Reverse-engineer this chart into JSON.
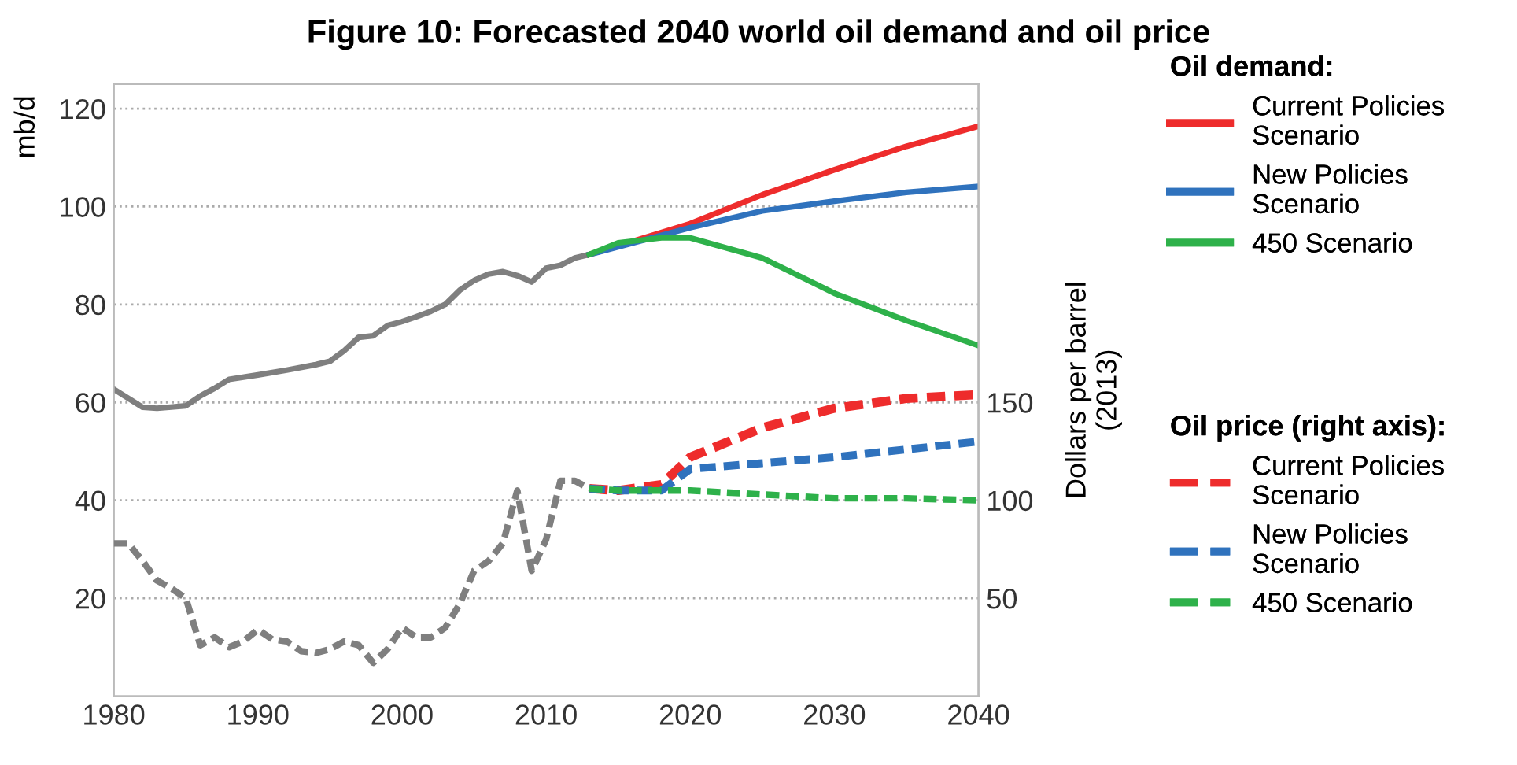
{
  "chart_data": {
    "type": "line",
    "title": "Figure 10: Forecasted 2040 world oil demand and oil price",
    "ylabel": "mb/d",
    "y2label": "Dollars per barrel\n(2013)",
    "annotations": [
      "Oil demand:",
      "Oil price (right axis):"
    ],
    "xlim": [
      1980,
      2040
    ],
    "xticks": [
      1980,
      1990,
      2000,
      2010,
      2020,
      2030,
      2040
    ],
    "ylim": [
      0,
      125
    ],
    "yticks": [
      20,
      40,
      60,
      80,
      100,
      120
    ],
    "y2lim": [
      0,
      312.5
    ],
    "y2ticks": [
      50,
      100,
      150
    ],
    "grid": "y",
    "legend": "right",
    "marker": "none",
    "series": [
      {
        "color": "#7f7f7f",
        "line_style": "solid",
        "x": [
          1980,
          1982,
          1983,
          1985,
          1986,
          1987,
          1988,
          1990,
          1992,
          1994,
          1995,
          1996,
          1997,
          1998,
          1999,
          2000,
          2001,
          2002,
          2003,
          2004,
          2005,
          2006,
          2007,
          2008,
          2009,
          2010,
          2011,
          2012,
          2013
        ],
        "values": [
          62.7,
          59,
          58.8,
          59.3,
          61.3,
          62.9,
          64.7,
          65.6,
          66.6,
          67.7,
          68.4,
          70.6,
          73.3,
          73.6,
          75.7,
          76.5,
          77.5,
          78.6,
          80,
          82.9,
          84.9,
          86.2,
          86.7,
          85.9,
          84.6,
          87.4,
          88,
          89.5,
          90.2
        ]
      },
      {
        "name": "Current Policies Scenario",
        "color": "#ee2c2c",
        "line_style": "solid",
        "x": [
          2013,
          2020,
          2025,
          2030,
          2035,
          2040
        ],
        "values": [
          90.2,
          96.5,
          102.4,
          107.5,
          112.3,
          116.4
        ]
      },
      {
        "name": "New Policies Scenario",
        "color": "#2f72bd",
        "line_style": "solid",
        "x": [
          2013,
          2020,
          2025,
          2030,
          2035,
          2040
        ],
        "values": [
          90.2,
          95.7,
          99.1,
          101.1,
          102.9,
          104.1
        ]
      },
      {
        "name": "450 Scenario",
        "color": "#2eb14a",
        "line_style": "solid",
        "x": [
          2013,
          2015,
          2018,
          2020,
          2025,
          2030,
          2035,
          2040
        ],
        "values": [
          90.2,
          92.6,
          93.6,
          93.6,
          89.5,
          82.3,
          76.7,
          71.6
        ]
      },
      {
        "color": "#7f7f7f",
        "line_style": "dashed",
        "axis": "y2",
        "x": [
          1980,
          1981,
          1982,
          1983,
          1984,
          1985,
          1986,
          1987,
          1988,
          1989,
          1990,
          1991,
          1992,
          1993,
          1994,
          1995,
          1996,
          1997,
          1998,
          1999,
          2000,
          2001,
          2002,
          2003,
          2004,
          2005,
          2006,
          2007,
          2008,
          2009,
          2010,
          2011,
          2012,
          2013
        ],
        "values": [
          78,
          78,
          69,
          59,
          55,
          50,
          26,
          30,
          25,
          28,
          34,
          29,
          28,
          23,
          22,
          24,
          28,
          26,
          17,
          24,
          35,
          30,
          30,
          35,
          47,
          64,
          69,
          78,
          105,
          64,
          80,
          110,
          110,
          106
        ]
      },
      {
        "name": "Current Policies Scenario",
        "color": "#ee2c2c",
        "line_style": "dashed",
        "axis": "y2",
        "x": [
          2013,
          2015,
          2018,
          2020,
          2025,
          2030,
          2035,
          2040
        ],
        "values": [
          106,
          105,
          108,
          122,
          137,
          147,
          152,
          154
        ]
      },
      {
        "name": "New Policies Scenario",
        "color": "#2f72bd",
        "line_style": "dashed",
        "axis": "y2",
        "x": [
          2013,
          2015,
          2018,
          2020,
          2025,
          2030,
          2035,
          2040
        ],
        "values": [
          106,
          105,
          105,
          116,
          119,
          122,
          126,
          130
        ]
      },
      {
        "name": "450 Scenario",
        "color": "#2eb14a",
        "line_style": "dashed",
        "axis": "y2",
        "x": [
          2013,
          2015,
          2020,
          2025,
          2030,
          2035,
          2040
        ],
        "values": [
          106,
          105,
          105,
          103,
          101,
          101,
          100
        ]
      }
    ]
  }
}
